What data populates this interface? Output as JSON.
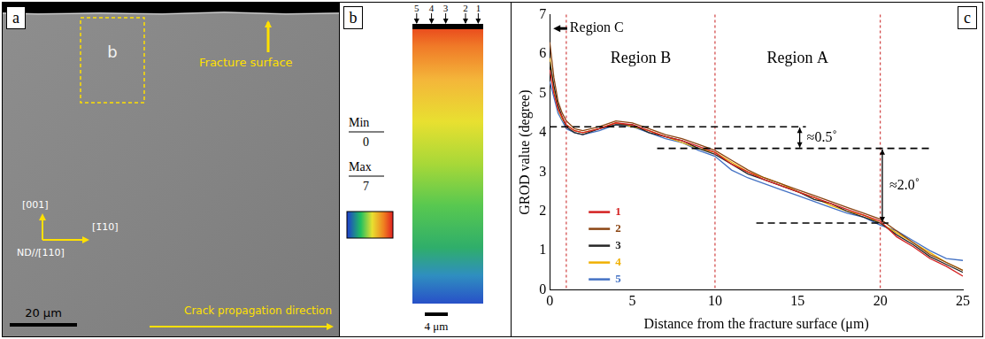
{
  "panel_a": {
    "letter": "a",
    "inset_label": "b",
    "fracture_label": "Fracture surface",
    "orientation_labels": {
      "up": "[001]",
      "right": "[1̄10]",
      "normal": "ND//[110]"
    },
    "scale_bar": "20 μm",
    "crack_label": "Crack propagation direction"
  },
  "panel_b": {
    "letter": "b",
    "line_numbers": [
      5,
      4,
      3,
      2,
      1
    ],
    "color_bar": {
      "min_label": "Min",
      "min": 0,
      "max_label": "Max",
      "max": 7
    },
    "scale_bar": "4 μm"
  },
  "panel_c": {
    "letter": "c"
  },
  "chart_data": {
    "type": "line",
    "x_label": "Distance from the fracture surface (μm)",
    "y_label": "GROD value (degree)",
    "x": [
      0,
      0.25,
      0.5,
      0.75,
      1,
      1.5,
      2,
      3,
      4,
      5,
      6,
      7,
      8,
      9,
      10,
      11,
      12,
      13,
      14,
      15,
      16,
      17,
      18,
      19,
      20,
      21,
      22,
      23,
      24,
      25
    ],
    "series": [
      {
        "name": "1",
        "color": "#d42020",
        "values": [
          5.6,
          5.0,
          4.6,
          4.4,
          4.2,
          4.05,
          4.0,
          4.1,
          4.25,
          4.2,
          4.05,
          3.9,
          3.8,
          3.65,
          3.5,
          3.2,
          3.0,
          2.8,
          2.65,
          2.5,
          2.35,
          2.2,
          2.05,
          1.9,
          1.75,
          1.35,
          1.1,
          0.8,
          0.6,
          0.35
        ]
      },
      {
        "name": "2",
        "color": "#8b4513",
        "values": [
          6.3,
          5.4,
          4.8,
          4.5,
          4.3,
          4.1,
          4.05,
          4.15,
          4.3,
          4.25,
          4.1,
          3.95,
          3.85,
          3.7,
          3.55,
          3.3,
          3.05,
          2.85,
          2.7,
          2.55,
          2.4,
          2.25,
          2.1,
          1.95,
          1.8,
          1.5,
          1.2,
          0.9,
          0.7,
          0.5
        ]
      },
      {
        "name": "3",
        "color": "#262626",
        "values": [
          5.8,
          5.2,
          4.7,
          4.4,
          4.15,
          4.0,
          3.95,
          4.1,
          4.2,
          4.2,
          4.0,
          3.9,
          3.8,
          3.6,
          3.45,
          3.2,
          2.95,
          2.8,
          2.65,
          2.5,
          2.3,
          2.2,
          2.0,
          1.85,
          1.7,
          1.4,
          1.15,
          0.85,
          0.65,
          0.45
        ]
      },
      {
        "name": "4",
        "color": "#f0b000",
        "values": [
          5.9,
          5.1,
          4.6,
          4.35,
          4.2,
          4.05,
          4.0,
          4.1,
          4.25,
          4.15,
          4.05,
          3.9,
          3.75,
          3.6,
          3.5,
          3.25,
          3.0,
          2.85,
          2.7,
          2.5,
          2.35,
          2.15,
          2.0,
          1.9,
          1.7,
          1.45,
          1.2,
          0.95,
          0.7,
          0.5
        ]
      },
      {
        "name": "5",
        "color": "#4472c4",
        "values": [
          5.3,
          4.9,
          4.5,
          4.3,
          4.1,
          4.0,
          3.95,
          4.05,
          4.2,
          4.15,
          4.0,
          3.85,
          3.75,
          3.55,
          3.4,
          3.05,
          2.85,
          2.7,
          2.55,
          2.4,
          2.25,
          2.1,
          1.95,
          1.85,
          1.65,
          1.5,
          1.25,
          1.0,
          0.8,
          0.75
        ]
      }
    ],
    "xlim": [
      0,
      25
    ],
    "xticks": [
      0,
      5,
      10,
      15,
      20,
      25
    ],
    "ylim": [
      0,
      7
    ],
    "yticks": [
      0,
      1,
      2,
      3,
      4,
      5,
      6,
      7
    ],
    "grid": false,
    "legend": "lower left",
    "region_boundaries": [
      1,
      10,
      20
    ],
    "regions": [
      "Region C",
      "Region B",
      "Region A"
    ],
    "levels": [
      {
        "y": 4.15,
        "x": [
          0,
          15.5
        ]
      },
      {
        "y": 3.6,
        "x": [
          6.5,
          23
        ]
      },
      {
        "y": 1.7,
        "x": [
          12.5,
          20.5
        ]
      }
    ],
    "level_differences": [
      "≈0.5˚",
      "≈2.0˚"
    ]
  }
}
